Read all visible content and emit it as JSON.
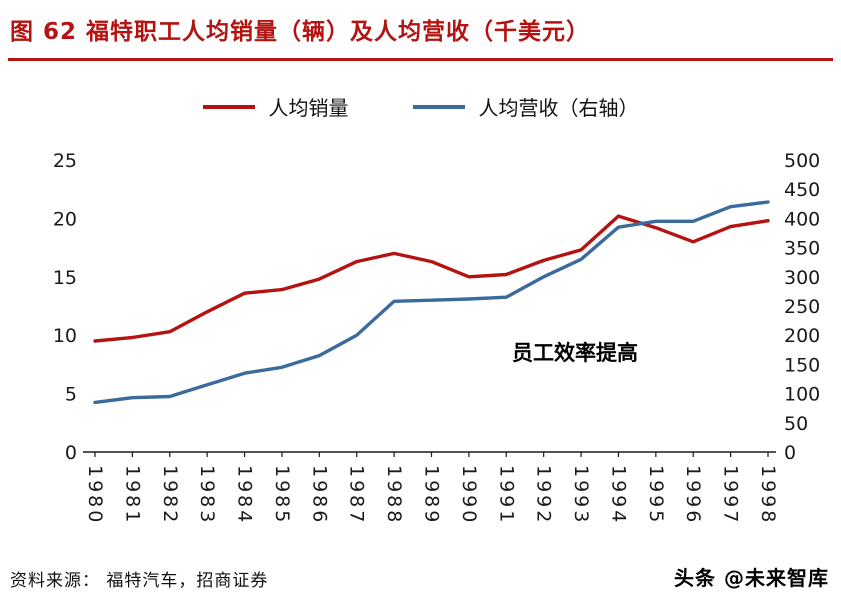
{
  "header": {
    "title": "图 62  福特职工人均销量（辆）及人均营收（千美元）"
  },
  "legend": {
    "items": [
      {
        "label": "人均销量"
      },
      {
        "label": "人均营收（右轴）"
      }
    ]
  },
  "chart_data": {
    "type": "line",
    "title": "福特职工人均销量（辆）及人均营收（千美元）",
    "categories": [
      "1980",
      "1981",
      "1982",
      "1983",
      "1984",
      "1985",
      "1986",
      "1987",
      "1988",
      "1989",
      "1990",
      "1991",
      "1992",
      "1993",
      "1994",
      "1995",
      "1996",
      "1997",
      "1998"
    ],
    "series": [
      {
        "name": "人均销量",
        "axis": "left",
        "color": "#b41311",
        "values": [
          9.5,
          9.8,
          10.3,
          12.0,
          13.6,
          13.9,
          14.8,
          16.3,
          17.0,
          16.3,
          15.0,
          15.2,
          16.4,
          17.3,
          20.2,
          19.2,
          18.0,
          19.3,
          19.8
        ]
      },
      {
        "name": "人均营收（右轴）",
        "axis": "right",
        "color": "#3a6b9c",
        "values": [
          85,
          93,
          95,
          115,
          135,
          145,
          165,
          200,
          258,
          260,
          262,
          265,
          300,
          330,
          385,
          395,
          395,
          420,
          428
        ]
      }
    ],
    "left_axis": {
      "range": [
        0,
        25
      ],
      "ticks": [
        0,
        5,
        10,
        15,
        20,
        25
      ]
    },
    "right_axis": {
      "range": [
        0,
        500
      ],
      "ticks": [
        0,
        50,
        100,
        150,
        200,
        250,
        300,
        350,
        400,
        450,
        500
      ]
    },
    "annotation": "员工效率提高",
    "grid": false,
    "legend_position": "top"
  },
  "footer": {
    "source": "资料来源：  福特汽车，招商证券",
    "watermark": "头条 @未来智库"
  },
  "colors": {
    "accent": "#b41311",
    "line_red": "#b41311",
    "line_blue": "#3a6b9c",
    "axis_text": "#1a1a1a"
  }
}
